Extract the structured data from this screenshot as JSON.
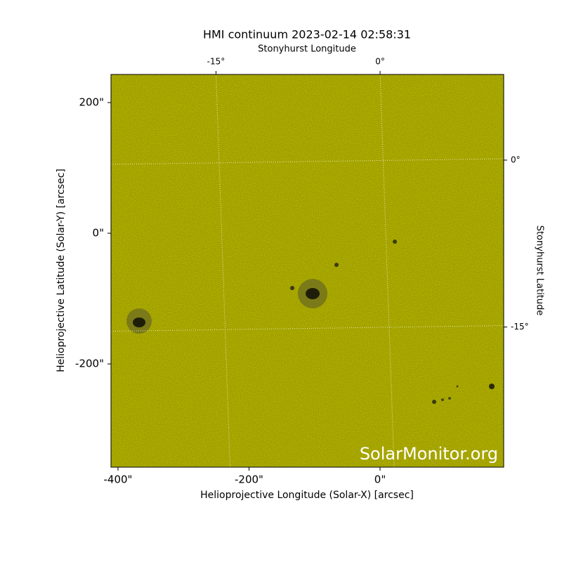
{
  "chart_data": {
    "type": "image",
    "title": "HMI continuum 2023-02-14 02:58:31",
    "x_label": "Helioprojective Longitude (Solar-X) [arcsec]",
    "y_label": "Helioprojective Latitude (Solar-Y) [arcsec]",
    "x2_label": "Stonyhurst Longitude",
    "y2_label": "Stonyhurst Latitude",
    "watermark": "SolarMonitor.org",
    "xlim": [
      -410.7,
      188.7
    ],
    "ylim": [
      -358,
      243
    ],
    "xticks": [
      {
        "value": -400,
        "label": "-400\""
      },
      {
        "value": -200,
        "label": "-200\""
      },
      {
        "value": 0,
        "label": "0\""
      }
    ],
    "yticks": [
      {
        "value": 200,
        "label": "200\""
      },
      {
        "value": 0,
        "label": "0\""
      },
      {
        "value": -200,
        "label": "-200\""
      }
    ],
    "x2lim": [
      -24.6,
      11.3
    ],
    "y2lim": [
      -27.6,
      7.7
    ],
    "x2ticks": [
      {
        "value": -15,
        "label": "-15°"
      },
      {
        "value": 0,
        "label": "0°"
      }
    ],
    "y2ticks": [
      {
        "value": 0,
        "label": "0°"
      },
      {
        "value": -15,
        "label": "-15°"
      }
    ],
    "grid": true,
    "color": "#c9c800"
  }
}
